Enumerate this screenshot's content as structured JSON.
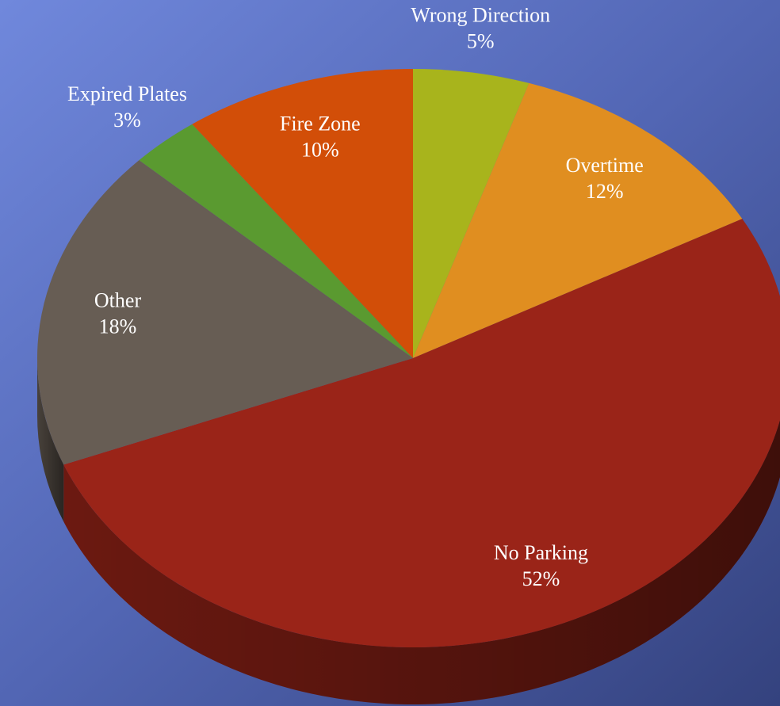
{
  "chart_data": {
    "type": "pie",
    "categories": [
      "Wrong Direction",
      "Overtime",
      "No Parking",
      "Other",
      "Expired Plates",
      "Fire Zone"
    ],
    "values": [
      5,
      12,
      52,
      18,
      3,
      10
    ],
    "value_labels": [
      "5%",
      "12%",
      "52%",
      "18%",
      "3%",
      "10%"
    ],
    "colors": [
      "#a8b41c",
      "#e08e20",
      "#9a2418",
      "#675d54",
      "#5a9a30",
      "#d24e08"
    ]
  }
}
